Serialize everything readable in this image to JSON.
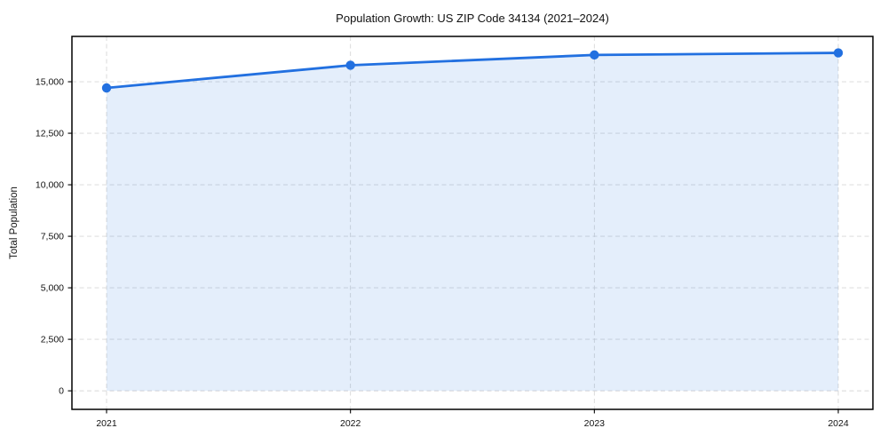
{
  "chart_data": {
    "type": "area",
    "title": "Population Growth: US ZIP Code 34134 (2021–2024)",
    "xlabel": "",
    "ylabel": "Total Population",
    "x": [
      2021,
      2022,
      2023,
      2024
    ],
    "xtick_labels": [
      "2021",
      "2022",
      "2023",
      "2024"
    ],
    "series": [
      {
        "name": "Total Population",
        "values": [
          14700,
          15800,
          16300,
          16400
        ]
      }
    ],
    "yticks": [
      0,
      2500,
      5000,
      7500,
      10000,
      12500,
      15000
    ],
    "ytick_labels": [
      "0",
      "2,500",
      "5,000",
      "7,500",
      "10,000",
      "12,500",
      "15,000"
    ],
    "xlim": [
      2020.858,
      2024.142
    ],
    "ylim": [
      -900,
      17200
    ],
    "grid": true,
    "grid_style": "dashed",
    "legend_position": "none",
    "colors": {
      "line": "#2270e0",
      "fill": "rgba(34,112,224,0.12)",
      "grid": "#d7d7d7",
      "spine": "#000000",
      "text": "#111111"
    },
    "marker": "circle"
  }
}
